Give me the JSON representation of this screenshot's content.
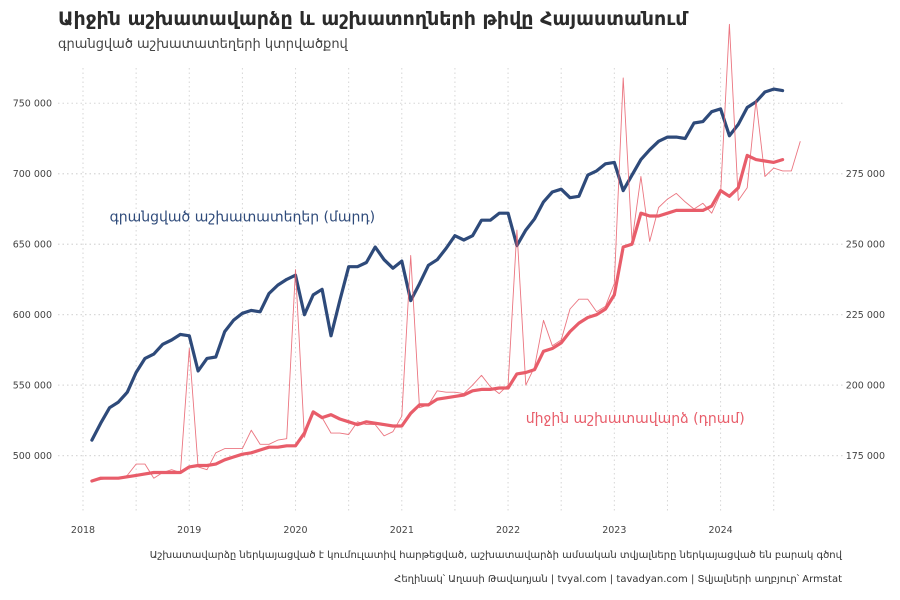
{
  "header": {
    "title": "Աիջին աշխատավարձը և աշխատողների թիվը Հայաստանում",
    "subtitle": "գրանցված աշխատատեղերի կտրվածքով"
  },
  "footer": {
    "note": "Աշխատավարձը ներկայացված է կումուլատիվ հարթեցված, աշխատավարձի ամսական տվյալները ներկայացված են բարակ գծով",
    "credits": "Հեղինակ՝ Աղասի Թավադյան   |   tvyal.com   |   tavadyan.com   |   Տվյալների աղբյուր՝ Armstat"
  },
  "chart_data": {
    "type": "line",
    "title": "Աիջին աշխատավարձը և աշխատողների թիվը Հայաստանում",
    "subtitle": "գրանցված աշխատատեղերի կտրվածքով",
    "x_ticks": [
      "2018",
      "2019",
      "2020",
      "2021",
      "2022",
      "2023",
      "2024"
    ],
    "x_range": [
      "2018-01",
      "2024-12"
    ],
    "y_left": {
      "range": [
        460000,
        775000
      ],
      "ticks": [
        500000,
        550000,
        600000,
        650000,
        700000,
        750000
      ],
      "tick_labels": [
        "500 000",
        "550 000",
        "600 000",
        "650 000",
        "700 000",
        "750 000"
      ]
    },
    "y_right": {
      "range": [
        155000,
        312500
      ],
      "ticks": [
        175000,
        200000,
        225000,
        250000,
        275000
      ],
      "tick_labels": [
        "175 000",
        "200 000",
        "225 000",
        "250 000",
        "275 000"
      ]
    },
    "grid": true,
    "legend": "none",
    "series": [
      {
        "name": "գրանցված աշխատատեղեր (մարդ)",
        "axis": "left",
        "color": "#2e4a7a",
        "start": "2018-02",
        "values": [
          511000,
          523000,
          534000,
          538000,
          545000,
          559000,
          569000,
          572000,
          579000,
          582000,
          586000,
          585000,
          560000,
          569000,
          570000,
          588000,
          596000,
          601000,
          603000,
          602000,
          615000,
          621000,
          625000,
          628000,
          600000,
          614000,
          618000,
          585000,
          610000,
          634000,
          634000,
          637000,
          648000,
          639000,
          633000,
          638000,
          610000,
          622000,
          635000,
          639000,
          647000,
          656000,
          653000,
          656000,
          667000,
          667000,
          672000,
          672000,
          649000,
          660000,
          668000,
          680000,
          687000,
          689000,
          683000,
          684000,
          699000,
          702000,
          707000,
          708000,
          688000,
          699000,
          710000,
          717000,
          723000,
          726000,
          726000,
          725000,
          736000,
          737000,
          744000,
          746000,
          727000,
          735000,
          747000,
          751000,
          758000,
          760000,
          759000
        ]
      },
      {
        "name": "միջին աշխատավարձ (դրամ)",
        "axis": "right",
        "color": "#e85d6a",
        "start": "2018-02",
        "smoothed": [
          166000,
          167000,
          167000,
          167000,
          167500,
          168000,
          168500,
          169000,
          169000,
          169000,
          169000,
          171000,
          171500,
          171500,
          172000,
          173500,
          174500,
          175500,
          176000,
          177000,
          178000,
          178000,
          178500,
          178500,
          183000,
          190500,
          188500,
          189500,
          188000,
          187000,
          186000,
          187000,
          186500,
          186000,
          185500,
          185500,
          190000,
          193000,
          193000,
          195000,
          195500,
          196000,
          196500,
          198000,
          198500,
          198500,
          199000,
          199000,
          204000,
          204500,
          205500,
          212000,
          213000,
          215000,
          219000,
          222000,
          224000,
          225000,
          227000,
          232000,
          249000,
          250000,
          261000,
          260000,
          260000,
          261000,
          262000,
          262000,
          262000,
          262000,
          263500,
          269000,
          267000,
          270000,
          281500,
          280000,
          279500,
          279000,
          280000
        ],
        "monthly": [
          166000,
          166500,
          167000,
          167000,
          168000,
          172000,
          172000,
          167000,
          169000,
          170000,
          169000,
          213000,
          171000,
          170000,
          176000,
          177500,
          177500,
          177500,
          184000,
          179000,
          179000,
          180500,
          181000,
          241000,
          181500,
          190500,
          188500,
          183000,
          183000,
          182500,
          187000,
          186000,
          186000,
          182000,
          183500,
          189000,
          246000,
          192000,
          193000,
          198000,
          197500,
          197500,
          197000,
          200000,
          203500,
          199500,
          197000,
          200000,
          255000,
          200000,
          206500,
          223000,
          214000,
          216000,
          227000,
          230500,
          230500,
          226000,
          228000,
          236000,
          309000,
          251000,
          274000,
          251000,
          263000,
          266000,
          268000,
          265000,
          262500,
          264500,
          261000,
          268000,
          328000,
          265500,
          270000,
          301000,
          274000,
          277000,
          276000,
          276000,
          286500
        ]
      }
    ],
    "annotations": [
      {
        "text": "գրանցված աշխատատեղեր (մարդ)",
        "series": 0
      },
      {
        "text": "միջին աշխատավարձ (դրամ)",
        "series": 1
      }
    ]
  }
}
